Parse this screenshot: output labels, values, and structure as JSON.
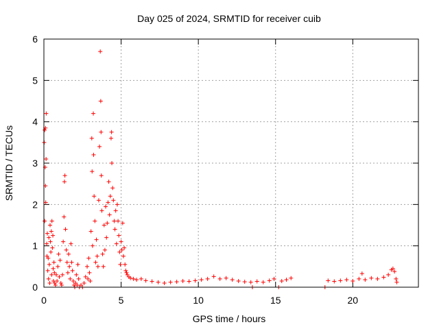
{
  "chart_data": {
    "type": "scatter",
    "title": "Day 025 of 2024, SRMTID for receiver cuib",
    "xlabel": "GPS time / hours",
    "ylabel": "SRMTID / TECUs",
    "xlim": [
      0,
      24.25
    ],
    "ylim": [
      0,
      6
    ],
    "xticks": [
      0,
      5,
      10,
      15,
      20
    ],
    "yticks": [
      0,
      1,
      2,
      3,
      4,
      5,
      6
    ],
    "grid": true,
    "legend": "none",
    "marker": "+",
    "color": "#ff0000",
    "series": [
      {
        "points": [
          [
            0.02,
            3.5
          ],
          [
            0.05,
            3.8
          ],
          [
            0.08,
            2.9
          ],
          [
            0.1,
            3.85
          ],
          [
            0.12,
            2.05
          ],
          [
            0.15,
            4.2
          ],
          [
            0.05,
            1.6
          ],
          [
            0.1,
            2.45
          ],
          [
            0.14,
            3.1
          ],
          [
            0.18,
            1.05
          ],
          [
            0.2,
            0.75
          ],
          [
            0.22,
            1.3
          ],
          [
            0.25,
            0.4
          ],
          [
            0.28,
            0.7
          ],
          [
            0.3,
            0.2
          ],
          [
            0.32,
            1.2
          ],
          [
            0.35,
            0.55
          ],
          [
            0.38,
            0.1
          ],
          [
            0.4,
            1.5
          ],
          [
            0.42,
            1.1
          ],
          [
            0.45,
            0.85
          ],
          [
            0.48,
            1.35
          ],
          [
            0.5,
            0.3
          ],
          [
            0.52,
            1.6
          ],
          [
            0.55,
            0.95
          ],
          [
            0.58,
            1.25
          ],
          [
            0.6,
            0.45
          ],
          [
            0.62,
            0.15
          ],
          [
            0.65,
            0.6
          ],
          [
            0.68,
            0.35
          ],
          [
            0.7,
            0.1
          ],
          [
            0.75,
            0.05
          ],
          [
            0.8,
            0.3
          ],
          [
            0.85,
            0.15
          ],
          [
            0.9,
            0.5
          ],
          [
            0.95,
            0.8
          ],
          [
            1.0,
            0.25
          ],
          [
            1.05,
            0.65
          ],
          [
            1.1,
            0.1
          ],
          [
            1.15,
            0.05
          ],
          [
            1.2,
            0.3
          ],
          [
            1.25,
            1.1
          ],
          [
            1.3,
            1.7
          ],
          [
            1.33,
            2.55
          ],
          [
            1.36,
            2.7
          ],
          [
            1.4,
            1.4
          ],
          [
            1.45,
            0.9
          ],
          [
            1.5,
            0.6
          ],
          [
            1.55,
            0.35
          ],
          [
            1.6,
            0.8
          ],
          [
            1.65,
            0.5
          ],
          [
            1.7,
            0.2
          ],
          [
            1.75,
            1.05
          ],
          [
            1.8,
            0.6
          ],
          [
            1.85,
            0.4
          ],
          [
            1.9,
            0.15
          ],
          [
            1.95,
            0.05
          ],
          [
            2.0,
            0.0
          ],
          [
            2.05,
            0.1
          ],
          [
            2.1,
            0.3
          ],
          [
            2.15,
            0.05
          ],
          [
            2.2,
            0.55
          ],
          [
            2.25,
            0.2
          ],
          [
            2.3,
            0.0
          ],
          [
            2.4,
            0.05
          ],
          [
            2.5,
            0.0
          ],
          [
            2.6,
            0.1
          ],
          [
            2.7,
            0.25
          ],
          [
            2.8,
            0.5
          ],
          [
            2.85,
            0.2
          ],
          [
            2.9,
            0.7
          ],
          [
            2.95,
            0.35
          ],
          [
            3.0,
            0.15
          ],
          [
            3.05,
            1.35
          ],
          [
            3.1,
            3.6
          ],
          [
            3.12,
            2.8
          ],
          [
            3.15,
            1.0
          ],
          [
            3.2,
            4.2
          ],
          [
            3.22,
            3.2
          ],
          [
            3.25,
            2.2
          ],
          [
            3.3,
            1.6
          ],
          [
            3.35,
            0.6
          ],
          [
            3.4,
            1.15
          ],
          [
            3.45,
            0.75
          ],
          [
            3.5,
            0.5
          ],
          [
            3.55,
            2.1
          ],
          [
            3.6,
            3.4
          ],
          [
            3.65,
            5.7
          ],
          [
            3.68,
            4.5
          ],
          [
            3.7,
            3.75
          ],
          [
            3.72,
            2.7
          ],
          [
            3.75,
            1.85
          ],
          [
            3.8,
            0.8
          ],
          [
            3.85,
            0.5
          ],
          [
            3.9,
            1.5
          ],
          [
            3.95,
            0.9
          ],
          [
            4.0,
            1.95
          ],
          [
            4.05,
            1.2
          ],
          [
            4.1,
            1.55
          ],
          [
            4.15,
            2.05
          ],
          [
            4.2,
            2.55
          ],
          [
            4.25,
            1.75
          ],
          [
            4.3,
            2.2
          ],
          [
            4.35,
            3.6
          ],
          [
            4.38,
            3.75
          ],
          [
            4.4,
            3.0
          ],
          [
            4.45,
            2.4
          ],
          [
            4.5,
            2.1
          ],
          [
            4.55,
            1.6
          ],
          [
            4.6,
            1.4
          ],
          [
            4.65,
            1.85
          ],
          [
            4.7,
            1.05
          ],
          [
            4.75,
            2.0
          ],
          [
            4.8,
            1.6
          ],
          [
            4.85,
            1.25
          ],
          [
            4.9,
            0.85
          ],
          [
            4.95,
            0.55
          ],
          [
            5.0,
            1.1
          ],
          [
            5.05,
            0.9
          ],
          [
            5.1,
            1.55
          ],
          [
            5.15,
            0.75
          ],
          [
            5.2,
            0.95
          ],
          [
            5.25,
            0.55
          ],
          [
            5.3,
            0.4
          ],
          [
            5.35,
            0.35
          ],
          [
            5.4,
            0.3
          ],
          [
            5.5,
            0.25
          ],
          [
            5.6,
            0.22
          ],
          [
            5.8,
            0.2
          ],
          [
            6.0,
            0.18
          ],
          [
            6.3,
            0.2
          ],
          [
            6.6,
            0.16
          ],
          [
            7.0,
            0.14
          ],
          [
            7.4,
            0.12
          ],
          [
            7.8,
            0.1
          ],
          [
            8.2,
            0.12
          ],
          [
            8.6,
            0.13
          ],
          [
            9.0,
            0.15
          ],
          [
            9.4,
            0.14
          ],
          [
            9.8,
            0.16
          ],
          [
            10.2,
            0.18
          ],
          [
            10.6,
            0.2
          ],
          [
            11.0,
            0.26
          ],
          [
            11.4,
            0.2
          ],
          [
            11.8,
            0.22
          ],
          [
            12.2,
            0.18
          ],
          [
            12.6,
            0.15
          ],
          [
            13.0,
            0.13
          ],
          [
            13.4,
            0.12
          ],
          [
            13.5,
            0.0
          ],
          [
            13.8,
            0.14
          ],
          [
            14.2,
            0.12
          ],
          [
            14.6,
            0.16
          ],
          [
            14.9,
            0.2
          ],
          [
            15.2,
            0.0
          ],
          [
            15.4,
            0.15
          ],
          [
            15.7,
            0.18
          ],
          [
            16.0,
            0.22
          ],
          [
            18.2,
            0.0
          ],
          [
            18.4,
            0.16
          ],
          [
            18.8,
            0.14
          ],
          [
            19.2,
            0.16
          ],
          [
            19.6,
            0.18
          ],
          [
            20.0,
            0.15
          ],
          [
            20.4,
            0.2
          ],
          [
            20.6,
            0.33
          ],
          [
            20.8,
            0.18
          ],
          [
            21.2,
            0.22
          ],
          [
            21.6,
            0.2
          ],
          [
            22.0,
            0.24
          ],
          [
            22.3,
            0.3
          ],
          [
            22.5,
            0.42
          ],
          [
            22.6,
            0.45
          ],
          [
            22.7,
            0.38
          ],
          [
            22.8,
            0.2
          ],
          [
            22.85,
            0.12
          ]
        ]
      }
    ]
  }
}
